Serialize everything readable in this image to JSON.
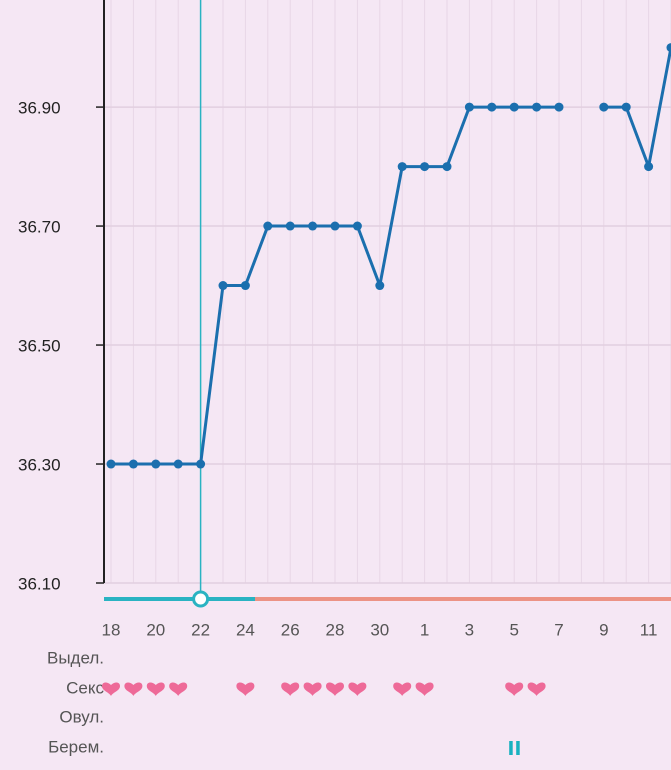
{
  "chart_data": {
    "type": "line",
    "categories": [
      "18",
      null,
      "20",
      null,
      "22",
      null,
      "24",
      null,
      "26",
      null,
      "28",
      null,
      "30",
      null,
      "1",
      null,
      "3",
      null,
      "5",
      null,
      "7",
      null,
      "9",
      null,
      "11",
      null
    ],
    "series": [
      {
        "color": "#1b6fae",
        "values": [
          36.3,
          36.3,
          36.3,
          36.3,
          36.3,
          36.6,
          36.6,
          36.7,
          36.7,
          36.7,
          36.7,
          36.7,
          36.6,
          36.8,
          36.8,
          36.8,
          36.9,
          36.9,
          36.9,
          36.9,
          36.9,
          null,
          36.9,
          36.9,
          36.8,
          37.0
        ]
      }
    ],
    "ylim": [
      36.1,
      37.08
    ],
    "yticks": [
      {
        "value": 36.1,
        "label": "36.10"
      },
      {
        "value": 36.3,
        "label": "36.30"
      },
      {
        "value": 36.5,
        "label": "36.50"
      },
      {
        "value": 36.7,
        "label": "36.70"
      },
      {
        "value": 36.9,
        "label": "36.90"
      }
    ],
    "grid": true,
    "selected_index": 4,
    "rows": [
      "Выдел.",
      "Секс",
      "Овул.",
      "Берем."
    ],
    "sex": [
      true,
      true,
      true,
      true,
      false,
      false,
      true,
      false,
      true,
      true,
      true,
      true,
      false,
      true,
      true,
      false,
      false,
      false,
      true,
      true,
      false,
      false,
      false,
      false,
      false,
      false
    ],
    "pregnancy_test": [
      false,
      false,
      false,
      false,
      false,
      false,
      false,
      false,
      false,
      false,
      false,
      false,
      false,
      false,
      false,
      false,
      false,
      false,
      true,
      false,
      false,
      false,
      false,
      false,
      false,
      false
    ]
  }
}
